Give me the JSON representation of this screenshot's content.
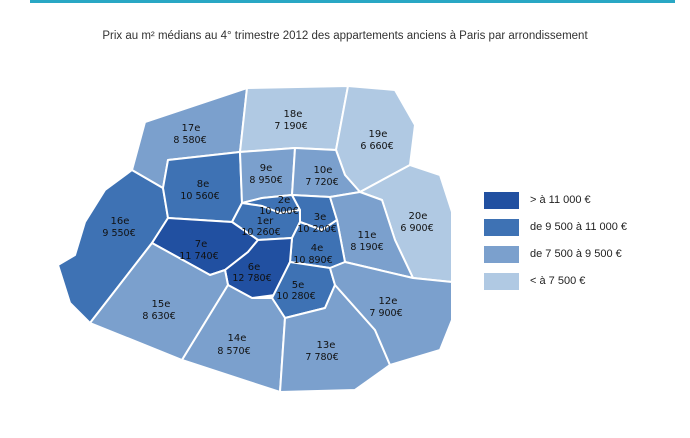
{
  "title": "Prix au m² médians au 4° trimestre 2012 des appartements anciens à Paris par arrondissement",
  "colors": {
    "c1": "#2150a1",
    "c2": "#3e72b4",
    "c3": "#7ba0cd",
    "c4": "#b0c9e3",
    "border": "#ffffff"
  },
  "legend": [
    {
      "label": "> à 11 000 €",
      "color": "#2150a1"
    },
    {
      "label": "de 9 500 à 11 000 €",
      "color": "#3e72b4"
    },
    {
      "label": "de 7 500 à  9 500 €",
      "color": "#7ba0cd"
    },
    {
      "label": "< à 7 500 €",
      "color": "#b0c9e3"
    }
  ],
  "arrondissements": [
    {
      "name": "1er",
      "price": "10 260€",
      "class": "c2"
    },
    {
      "name": "2e",
      "price": "10 000€",
      "class": "c2"
    },
    {
      "name": "3e",
      "price": "10 200€",
      "class": "c2"
    },
    {
      "name": "4e",
      "price": "10 890€",
      "class": "c2"
    },
    {
      "name": "5e",
      "price": "10 280€",
      "class": "c2"
    },
    {
      "name": "6e",
      "price": "12 780€",
      "class": "c1"
    },
    {
      "name": "7e",
      "price": "11 740€",
      "class": "c1"
    },
    {
      "name": "8e",
      "price": "10 560€",
      "class": "c2"
    },
    {
      "name": "9e",
      "price": "8 950€",
      "class": "c3"
    },
    {
      "name": "10e",
      "price": "7 720€",
      "class": "c3"
    },
    {
      "name": "11e",
      "price": "8 190€",
      "class": "c3"
    },
    {
      "name": "12e",
      "price": "7 900€",
      "class": "c3"
    },
    {
      "name": "13e",
      "price": "7 780€",
      "class": "c3"
    },
    {
      "name": "14e",
      "price": "8 570€",
      "class": "c3"
    },
    {
      "name": "15e",
      "price": "8 630€",
      "class": "c3"
    },
    {
      "name": "16e",
      "price": "9 550€",
      "class": "c2"
    },
    {
      "name": "17e",
      "price": "8 580€",
      "class": "c3"
    },
    {
      "name": "18e",
      "price": "7 190€",
      "class": "c4"
    },
    {
      "name": "19e",
      "price": "6 660€",
      "class": "c4"
    },
    {
      "name": "20e",
      "price": "6 900€",
      "class": "c4"
    }
  ]
}
